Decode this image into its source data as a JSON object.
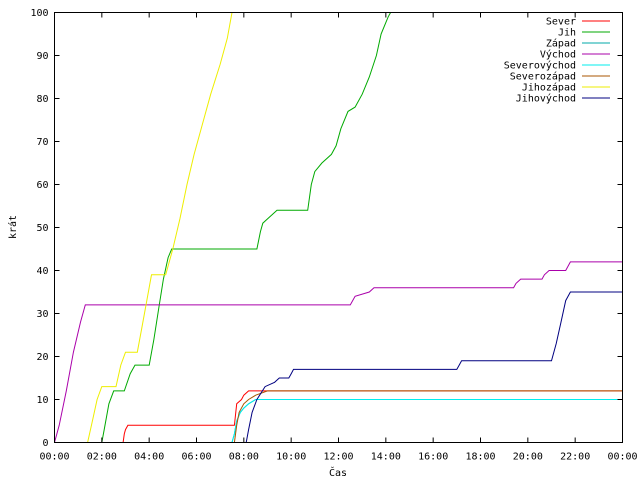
{
  "chart_data": {
    "type": "line",
    "title": "",
    "xlabel": "Čas",
    "ylabel": "krát",
    "xlim": [
      0,
      24
    ],
    "ylim": [
      0,
      100
    ],
    "x_ticks": [
      "00:00",
      "02:00",
      "04:00",
      "06:00",
      "08:00",
      "10:00",
      "12:00",
      "14:00",
      "16:00",
      "18:00",
      "20:00",
      "22:00",
      "00:00"
    ],
    "y_ticks": [
      0,
      10,
      20,
      30,
      40,
      50,
      60,
      70,
      80,
      90,
      100
    ],
    "grid": false,
    "legend_position": "top-right",
    "x_unit": "hours",
    "series": [
      {
        "name": "Sever",
        "color": "#ff0000",
        "points": [
          [
            2.9,
            0
          ],
          [
            2.95,
            2
          ],
          [
            3.0,
            3
          ],
          [
            3.1,
            4
          ],
          [
            7.6,
            4
          ],
          [
            7.7,
            9
          ],
          [
            7.9,
            10
          ],
          [
            8.0,
            11
          ],
          [
            8.2,
            12
          ],
          [
            24,
            12
          ]
        ]
      },
      {
        "name": "Jih",
        "color": "#00aa00",
        "points": [
          [
            2.0,
            0
          ],
          [
            2.1,
            3
          ],
          [
            2.3,
            9
          ],
          [
            2.5,
            12
          ],
          [
            2.95,
            12
          ],
          [
            3.2,
            16
          ],
          [
            3.4,
            18
          ],
          [
            4.0,
            18
          ],
          [
            4.2,
            24
          ],
          [
            4.4,
            31
          ],
          [
            4.6,
            38
          ],
          [
            4.8,
            43
          ],
          [
            4.95,
            45
          ],
          [
            8.55,
            45
          ],
          [
            8.7,
            49
          ],
          [
            8.8,
            51
          ],
          [
            9.0,
            52
          ],
          [
            9.2,
            53
          ],
          [
            9.4,
            54
          ],
          [
            10.7,
            54
          ],
          [
            10.85,
            60
          ],
          [
            11.0,
            63
          ],
          [
            11.3,
            65
          ],
          [
            11.7,
            67
          ],
          [
            11.9,
            69
          ],
          [
            12.1,
            73
          ],
          [
            12.4,
            77
          ],
          [
            12.7,
            78
          ],
          [
            13.0,
            81
          ],
          [
            13.3,
            85
          ],
          [
            13.6,
            90
          ],
          [
            13.8,
            95
          ],
          [
            14.1,
            99
          ],
          [
            14.2,
            100
          ]
        ]
      },
      {
        "name": "Západ",
        "color": "#00aaaa",
        "points": [
          [
            7.5,
            0
          ],
          [
            7.6,
            2
          ],
          [
            7.7,
            5
          ],
          [
            7.85,
            7
          ],
          [
            8.0,
            8
          ],
          [
            8.2,
            9
          ],
          [
            8.5,
            10
          ],
          [
            24,
            10
          ]
        ]
      },
      {
        "name": "Východ",
        "color": "#aa00aa",
        "points": [
          [
            0,
            0
          ],
          [
            0.2,
            4
          ],
          [
            0.5,
            12
          ],
          [
            0.8,
            21
          ],
          [
            1.1,
            28
          ],
          [
            1.3,
            32
          ],
          [
            12.5,
            32
          ],
          [
            12.7,
            34
          ],
          [
            13.3,
            35
          ],
          [
            13.5,
            36
          ],
          [
            19.4,
            36
          ],
          [
            19.5,
            37
          ],
          [
            19.7,
            38
          ],
          [
            20.6,
            38
          ],
          [
            20.7,
            39
          ],
          [
            20.9,
            40
          ],
          [
            21.6,
            40
          ],
          [
            21.8,
            42
          ],
          [
            24,
            42
          ]
        ]
      },
      {
        "name": "Severovýchod",
        "color": "#00eeee",
        "points": [
          [
            7.5,
            0
          ],
          [
            7.6,
            2
          ],
          [
            7.7,
            5
          ],
          [
            7.85,
            7
          ],
          [
            8.0,
            8
          ],
          [
            8.2,
            9
          ],
          [
            8.5,
            10
          ],
          [
            24,
            10
          ]
        ]
      },
      {
        "name": "Severozápad",
        "color": "#aa5500",
        "points": [
          [
            7.6,
            0
          ],
          [
            7.7,
            4
          ],
          [
            7.8,
            7
          ],
          [
            8.0,
            9
          ],
          [
            8.2,
            10
          ],
          [
            8.5,
            11
          ],
          [
            9.0,
            12
          ],
          [
            24,
            12
          ]
        ]
      },
      {
        "name": "Jihozápad",
        "color": "#eeee00",
        "points": [
          [
            1.4,
            0
          ],
          [
            1.6,
            5
          ],
          [
            1.8,
            10
          ],
          [
            2.0,
            13
          ],
          [
            2.6,
            13
          ],
          [
            2.8,
            18
          ],
          [
            3.0,
            21
          ],
          [
            3.5,
            21
          ],
          [
            3.7,
            27
          ],
          [
            3.9,
            33
          ],
          [
            4.1,
            39
          ],
          [
            4.7,
            39
          ],
          [
            5.0,
            45
          ],
          [
            5.3,
            52
          ],
          [
            5.6,
            60
          ],
          [
            5.9,
            67
          ],
          [
            6.2,
            73
          ],
          [
            6.6,
            81
          ],
          [
            7.0,
            88
          ],
          [
            7.3,
            94
          ],
          [
            7.5,
            100
          ]
        ]
      },
      {
        "name": "Jihovýchod",
        "color": "#000080",
        "points": [
          [
            8.1,
            0
          ],
          [
            8.2,
            3
          ],
          [
            8.35,
            7
          ],
          [
            8.55,
            10
          ],
          [
            8.9,
            13
          ],
          [
            9.3,
            14
          ],
          [
            9.5,
            15
          ],
          [
            9.9,
            15
          ],
          [
            10.0,
            16
          ],
          [
            10.1,
            17
          ],
          [
            17.0,
            17
          ],
          [
            17.1,
            18
          ],
          [
            17.2,
            19
          ],
          [
            21.0,
            19
          ],
          [
            21.2,
            23
          ],
          [
            21.4,
            28
          ],
          [
            21.6,
            33
          ],
          [
            21.8,
            35
          ],
          [
            24,
            35
          ]
        ]
      }
    ]
  }
}
